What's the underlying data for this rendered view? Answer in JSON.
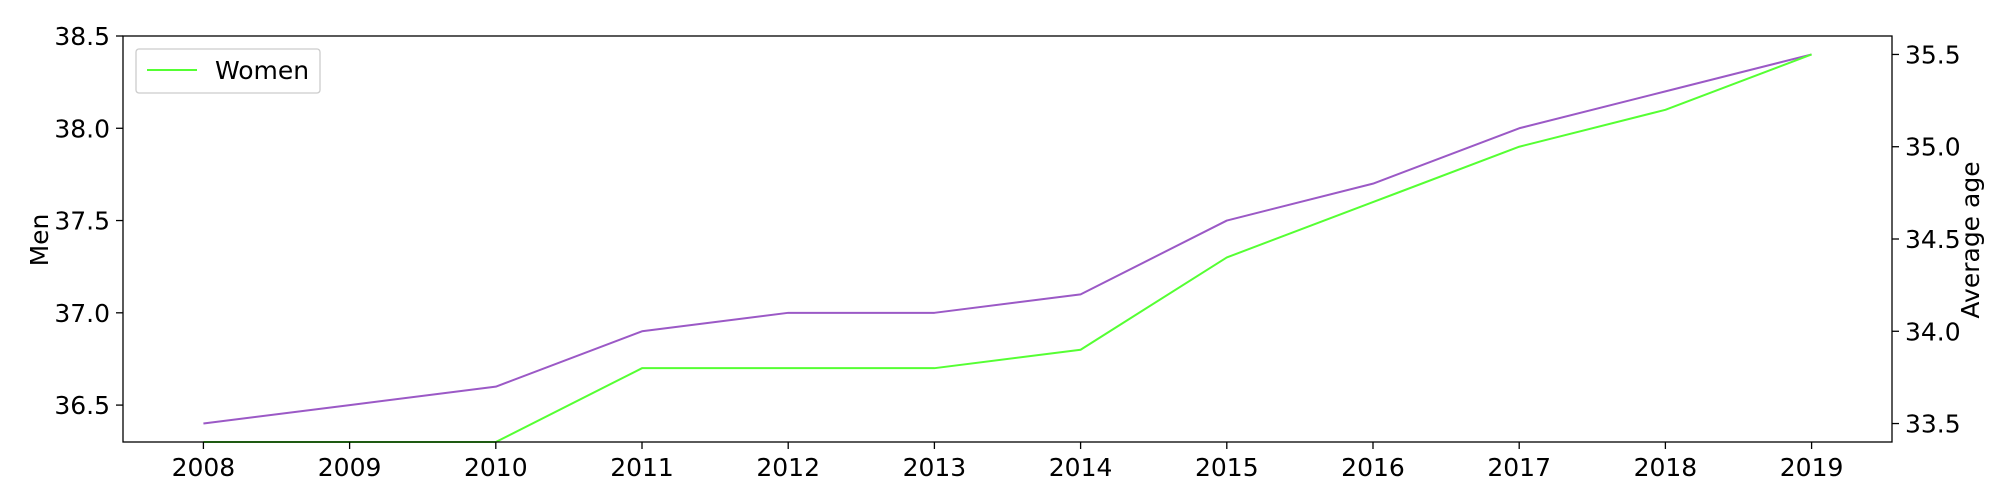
{
  "chart_data": {
    "type": "line",
    "title": "",
    "x": [
      2008,
      2009,
      2010,
      2011,
      2012,
      2013,
      2014,
      2015,
      2016,
      2017,
      2018,
      2019
    ],
    "xlim": [
      2007.45,
      2019.55
    ],
    "left_axis": {
      "label": "Men",
      "ylim": [
        36.3,
        38.5
      ],
      "ticks": [
        36.5,
        37.0,
        37.5,
        38.0,
        38.5
      ],
      "tick_labels": [
        "36.5",
        "37.0",
        "37.5",
        "38.0",
        "38.5"
      ]
    },
    "right_axis": {
      "label": "Average age",
      "ylim": [
        33.4,
        35.6
      ],
      "ticks": [
        33.5,
        34.0,
        34.5,
        35.0,
        35.5
      ],
      "tick_labels": [
        "33.5",
        "34.0",
        "34.5",
        "35.0",
        "35.5"
      ]
    },
    "series": [
      {
        "axis": "left",
        "color": "#9b59c6",
        "values": [
          36.4,
          36.5,
          36.6,
          36.9,
          37.0,
          37.0,
          37.1,
          37.5,
          37.7,
          38.0,
          38.2,
          38.4
        ]
      },
      {
        "name": "Women",
        "axis": "right",
        "color": "#55ff33",
        "values": [
          33.4,
          33.4,
          33.4,
          33.8,
          33.8,
          33.8,
          33.9,
          34.4,
          34.7,
          35.0,
          35.2,
          35.5
        ]
      }
    ],
    "legend": {
      "position": "top-left",
      "entries": [
        "Women"
      ]
    },
    "grid": false
  }
}
